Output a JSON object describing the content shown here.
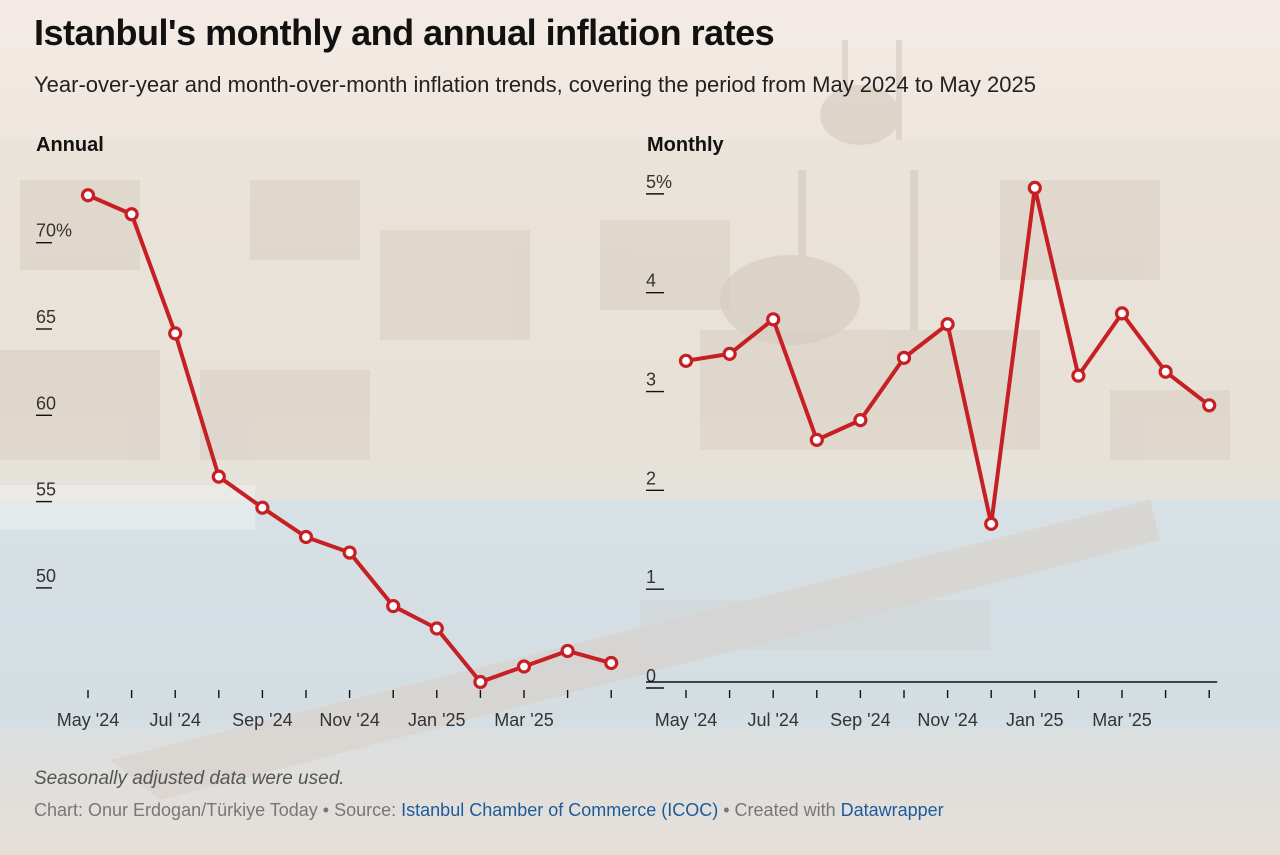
{
  "header": {
    "title": "Istanbul's monthly and annual inflation rates",
    "subtitle": "Year-over-year and month-over-month inflation trends, covering the period from May 2024 to May 2025"
  },
  "panels": {
    "annual_title": "Annual",
    "monthly_title": "Monthly"
  },
  "colors": {
    "line": "#c61f24",
    "marker_fill": "#ffffff",
    "axis": "#111111",
    "tick_label": "#333333"
  },
  "chart_data": [
    {
      "type": "line",
      "title": "Annual",
      "x": [
        "May 2024",
        "Jun 2024",
        "Jul 2024",
        "Aug 2024",
        "Sep 2024",
        "Oct 2024",
        "Nov 2024",
        "Dec 2024",
        "Jan 2025",
        "Feb 2025",
        "Mar 2025",
        "Apr 2025",
        "May 2025"
      ],
      "values": [
        72.4,
        71.3,
        64.4,
        56.1,
        54.3,
        52.6,
        51.7,
        48.6,
        47.3,
        44.2,
        45.1,
        46.0,
        45.3
      ],
      "ylim": [
        44.2,
        73.4
      ],
      "yticks": [
        50,
        55,
        60,
        65,
        70
      ],
      "ytick_labels": [
        "50",
        "55",
        "60",
        "65",
        "70%"
      ],
      "xtick_labels": [
        "May '24",
        "Jul '24",
        "Sep '24",
        "Nov '24",
        "Jan '25",
        "Mar '25"
      ],
      "xlabel": "",
      "ylabel": "",
      "grid": false
    },
    {
      "type": "line",
      "title": "Monthly",
      "x": [
        "May 2024",
        "Jun 2024",
        "Jul 2024",
        "Aug 2024",
        "Sep 2024",
        "Oct 2024",
        "Nov 2024",
        "Dec 2024",
        "Jan 2025",
        "Feb 2025",
        "Mar 2025",
        "Apr 2025",
        "May 2025"
      ],
      "values": [
        3.25,
        3.32,
        3.67,
        2.45,
        2.65,
        3.28,
        3.62,
        1.6,
        5.0,
        3.1,
        3.73,
        3.14,
        2.8
      ],
      "ylim": [
        0,
        5.1
      ],
      "yticks": [
        0,
        1,
        2,
        3,
        4,
        5
      ],
      "ytick_labels": [
        "0",
        "1",
        "2",
        "3",
        "4",
        "5%"
      ],
      "xtick_labels": [
        "May '24",
        "Jul '24",
        "Sep '24",
        "Nov '24",
        "Jan '25",
        "Mar '25"
      ],
      "xlabel": "",
      "ylabel": "",
      "grid": false
    }
  ],
  "footer": {
    "note": "Seasonally adjusted data were used.",
    "credit_prefix": "Chart: Onur Erdogan/Türkiye Today • Source: ",
    "source_link": "Istanbul Chamber of Commerce (ICOC)",
    "credit_middle": " • Created with ",
    "tool_link": "Datawrapper"
  }
}
